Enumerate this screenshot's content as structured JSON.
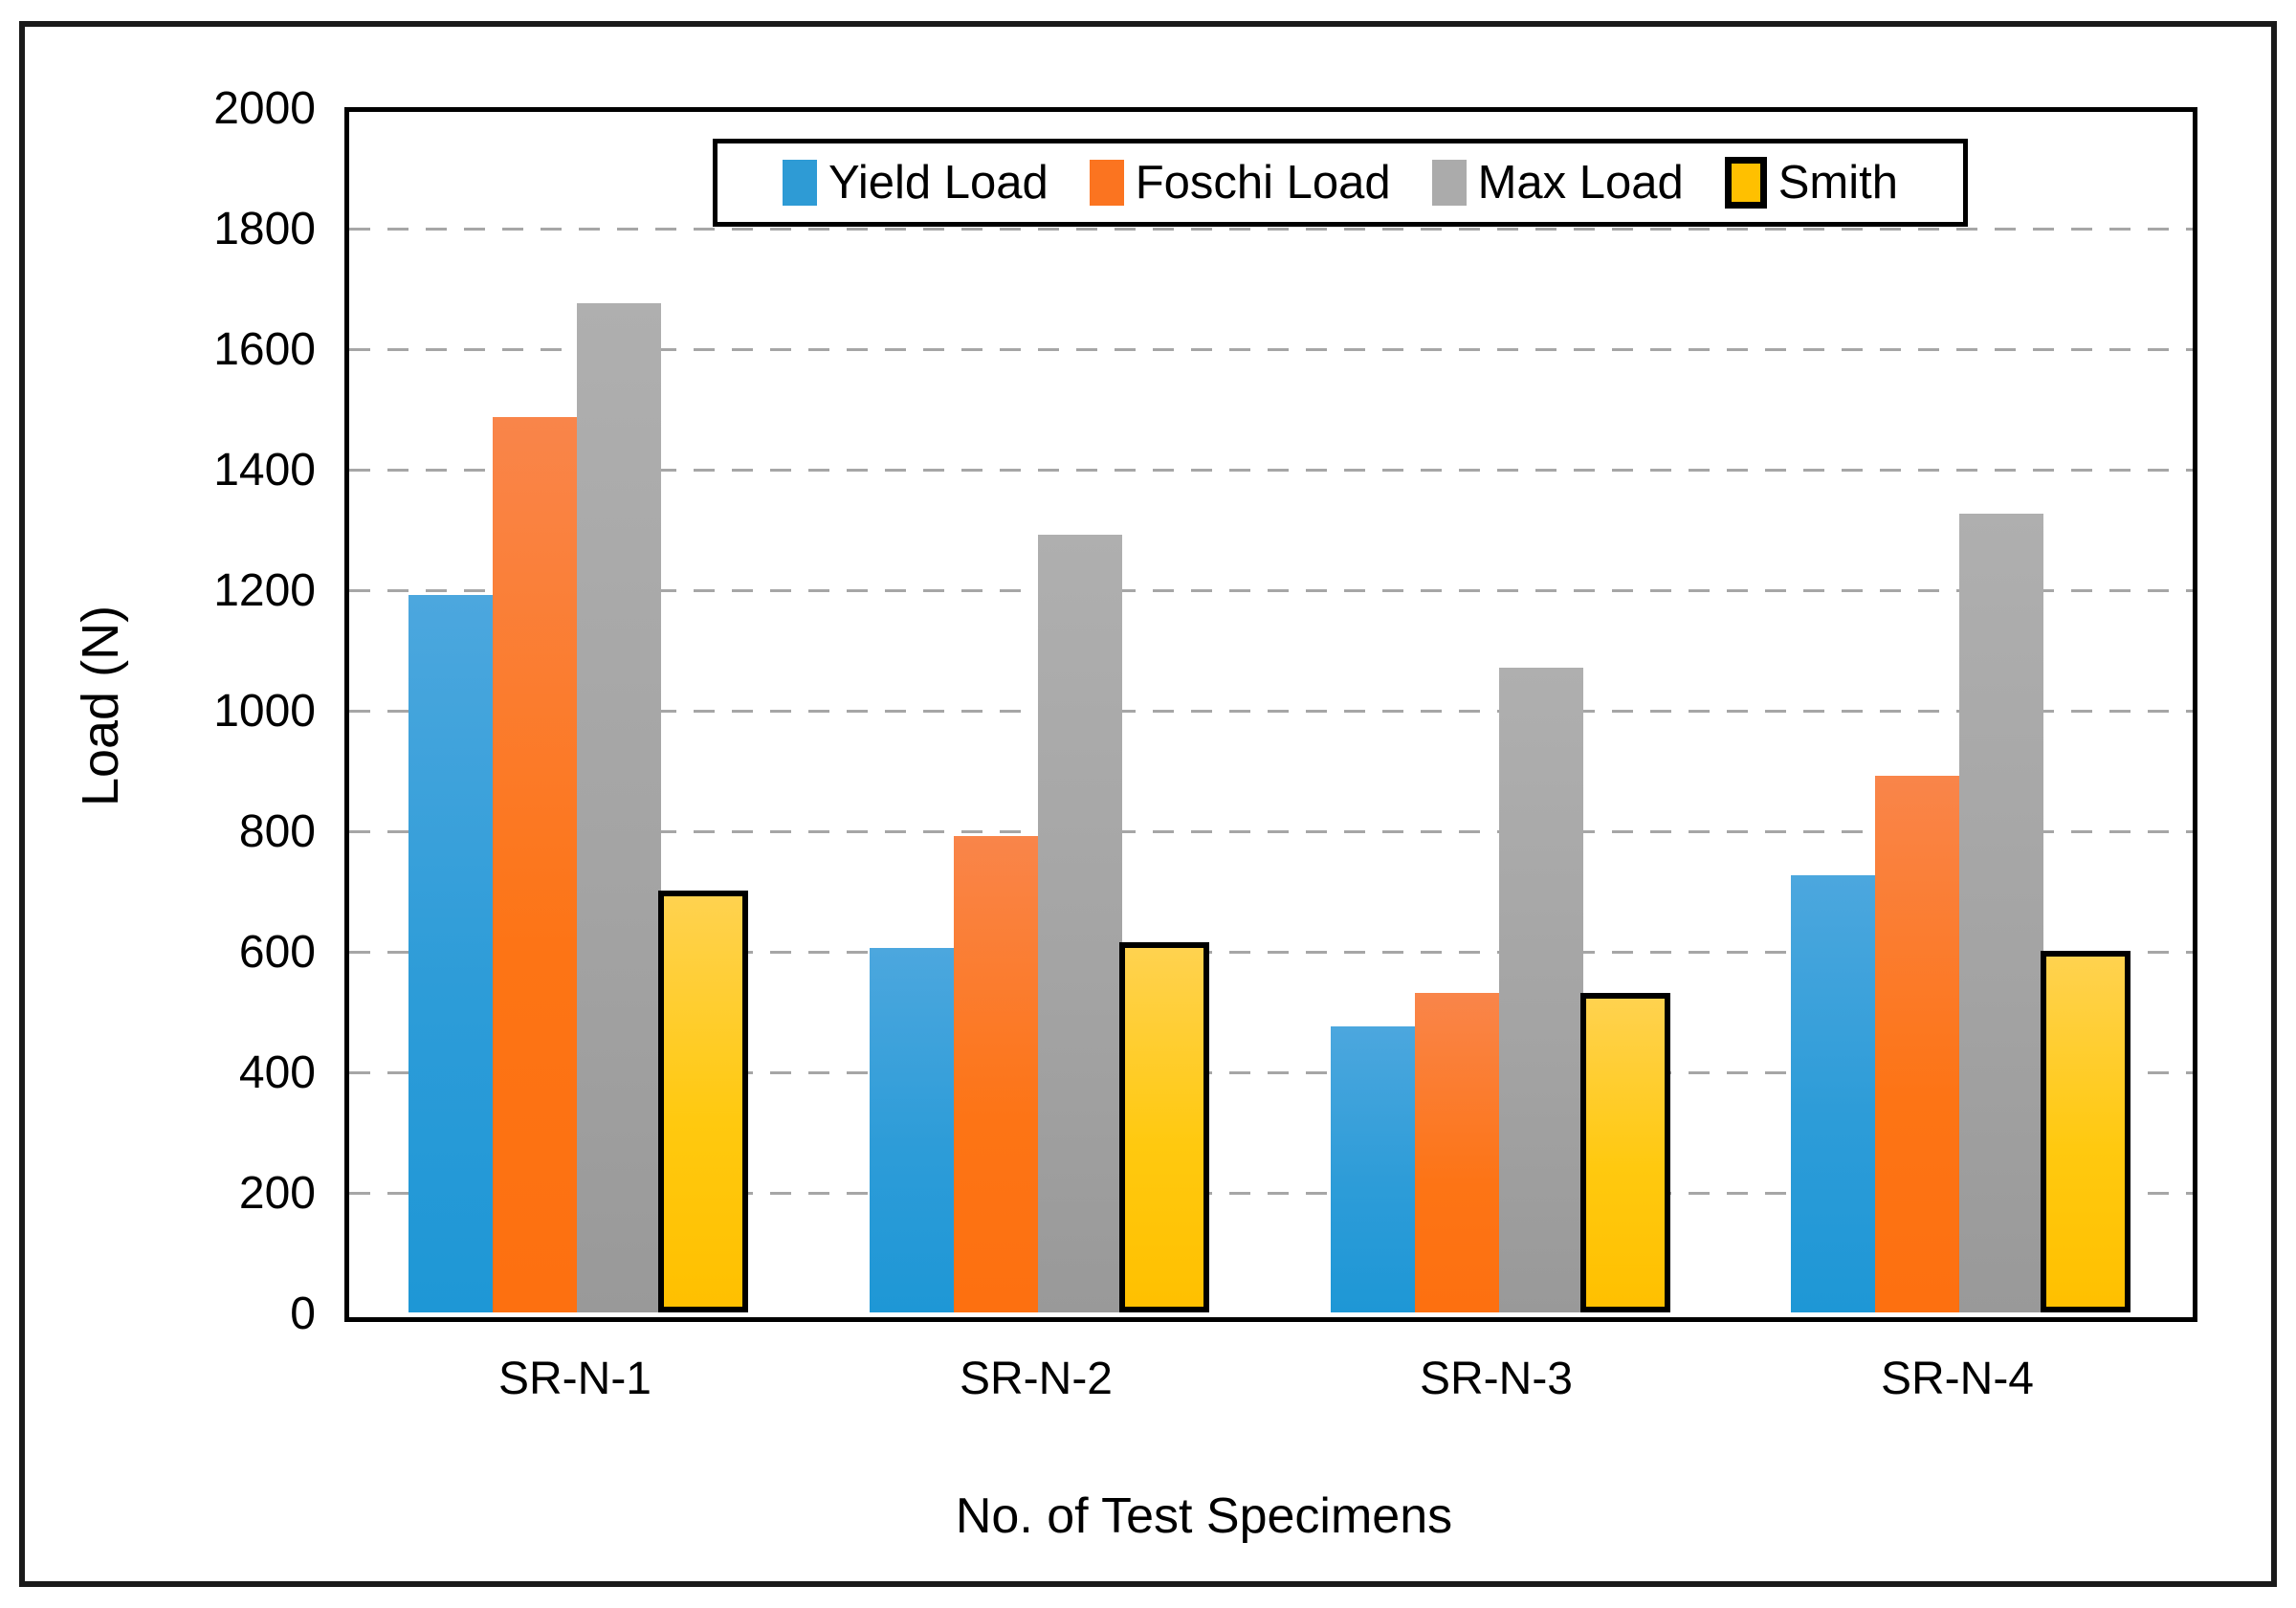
{
  "chart_data": {
    "type": "bar",
    "title": "",
    "xlabel": "No. of Test Specimens",
    "ylabel": "Load (N)",
    "categories": [
      "SR-N-1",
      "SR-N-2",
      "SR-N-3",
      "SR-N-4"
    ],
    "series": [
      {
        "name": "Yield Load",
        "color": "#2E9BD5",
        "values": [
          1190,
          605,
          475,
          725
        ]
      },
      {
        "name": "Foschi Load",
        "color": "#FB7420",
        "values": [
          1485,
          790,
          530,
          890
        ]
      },
      {
        "name": "Max Load",
        "color": "#A6A6A6",
        "values": [
          1675,
          1290,
          1070,
          1325
        ]
      },
      {
        "name": "Smith",
        "color": "#FFC000",
        "border_color": "#000000",
        "values": [
          690,
          605,
          520,
          590
        ]
      }
    ],
    "ylim": [
      0,
      2000
    ],
    "ytick_step": 200,
    "grid": "horizontal-dashed",
    "grid_color": "#A6A6A6",
    "axis_color": "#000000",
    "legend_position": "top-center-inside"
  }
}
